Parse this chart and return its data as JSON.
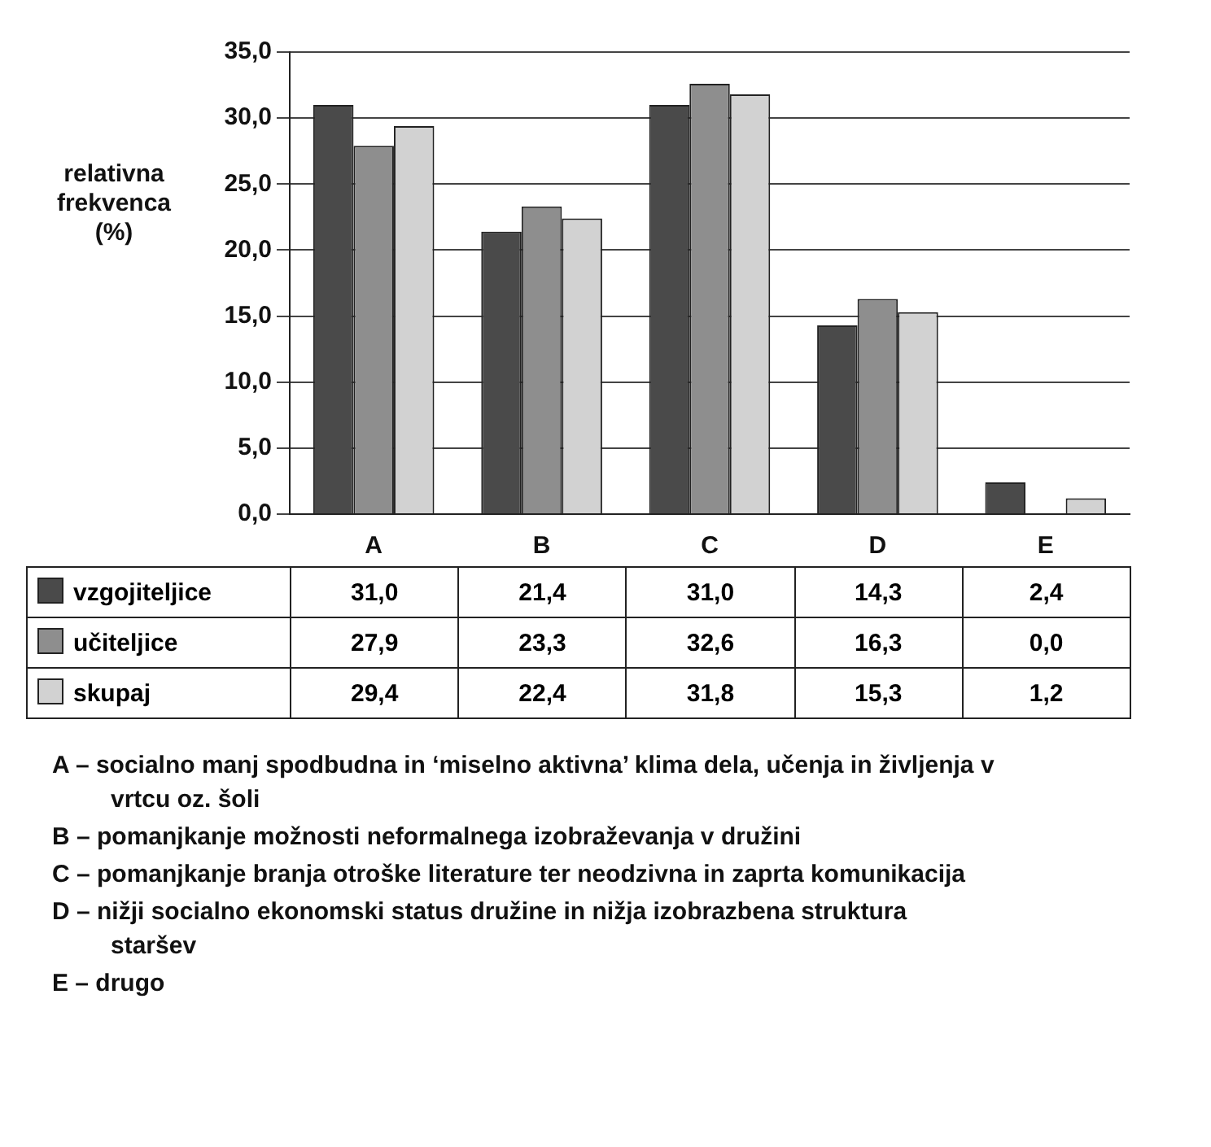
{
  "chart_data": {
    "type": "bar",
    "ylabel": "relativna frekvenca (%)",
    "categories": [
      "A",
      "B",
      "C",
      "D",
      "E"
    ],
    "series": [
      {
        "name": "vzgojiteljice",
        "color": "#4a4a4a",
        "values": [
          31.0,
          21.4,
          31.0,
          14.3,
          2.4
        ],
        "value_labels": [
          "31,0",
          "21,4",
          "31,0",
          "14,3",
          "2,4"
        ]
      },
      {
        "name": "učiteljice",
        "color": "#8e8e8e",
        "values": [
          27.9,
          23.3,
          32.6,
          16.3,
          0.0
        ],
        "value_labels": [
          "27,9",
          "23,3",
          "32,6",
          "16,3",
          "0,0"
        ]
      },
      {
        "name": "skupaj",
        "color": "#d2d2d2",
        "values": [
          29.4,
          22.4,
          31.8,
          15.3,
          1.2
        ],
        "value_labels": [
          "29,4",
          "22,4",
          "31,8",
          "15,3",
          "1,2"
        ]
      }
    ],
    "ylim": [
      0,
      35
    ],
    "yticks": [
      {
        "value": 0,
        "label": "0,0"
      },
      {
        "value": 5,
        "label": "5,0"
      },
      {
        "value": 10,
        "label": "10,0"
      },
      {
        "value": 15,
        "label": "15,0"
      },
      {
        "value": 20,
        "label": "20,0"
      },
      {
        "value": 25,
        "label": "25,0"
      },
      {
        "value": 30,
        "label": "30,0"
      },
      {
        "value": 35,
        "label": "35,0"
      }
    ],
    "grid": "y",
    "legend": "bottom left",
    "annotations": [
      "A – socialno manj spodbudna in ‘miselno aktivna’ klima dela, učenja in življenja v vrtcu oz. šoli",
      "B – pomanjkanje možnosti neformalnega izobraževanja v družini",
      "C – pomanjkanje branja otroške literature ter neodzivna in zaprta komunikacija",
      "D – nižji socialno ekonomski status družine in nižja izobrazbena struktura staršev",
      "E – drugo"
    ]
  }
}
